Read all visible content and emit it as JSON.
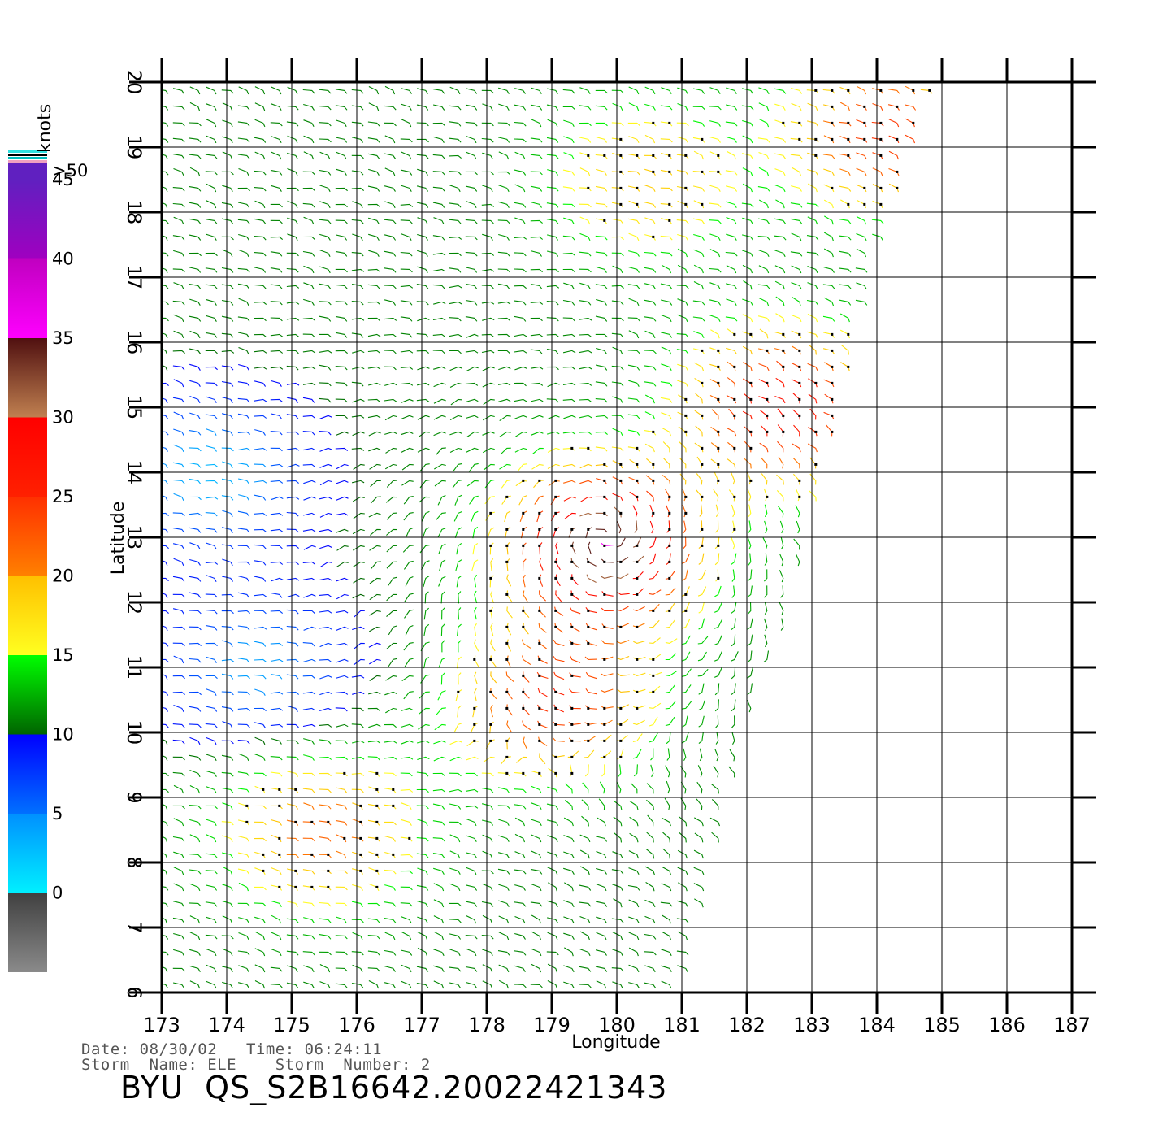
{
  "legend": {
    "units_label": "knots",
    "bins": [
      {
        "label": "0",
        "from": 0,
        "to": 5,
        "colors": [
          "#8a8a8a",
          "#404040"
        ]
      },
      {
        "label": "5",
        "from": 5,
        "to": 10,
        "colors": [
          "#00f0ff",
          "#0090ff"
        ]
      },
      {
        "label": "10",
        "from": 10,
        "to": 15,
        "colors": [
          "#0070ff",
          "#0000ff"
        ]
      },
      {
        "label": "15",
        "from": 15,
        "to": 20,
        "colors": [
          "#006400",
          "#00ff00"
        ]
      },
      {
        "label": "20",
        "from": 20,
        "to": 25,
        "colors": [
          "#ffff20",
          "#ffc000"
        ]
      },
      {
        "label": "25",
        "from": 25,
        "to": 30,
        "colors": [
          "#ff8000",
          "#ff3000"
        ]
      },
      {
        "label": "30",
        "from": 30,
        "to": 35,
        "colors": [
          "#ff2000",
          "#ff0000"
        ]
      },
      {
        "label": "35",
        "from": 35,
        "to": 40,
        "colors": [
          "#c08050",
          "#501010"
        ]
      },
      {
        "label": "40",
        "from": 40,
        "to": 45,
        "colors": [
          "#ff00ff",
          "#c000c0"
        ]
      },
      {
        "label": "45",
        "from": 45,
        "to": 50,
        "colors": [
          "#a000c0",
          "#6020c0"
        ]
      },
      {
        "label": ">50",
        "from": 50,
        "to": 55,
        "colors": [
          "#6020c0",
          "#6020c0"
        ]
      }
    ]
  },
  "chart_data": {
    "type": "scatter",
    "title": "BYU  QS_S2B16642.20022421343",
    "xlabel": "Longitude",
    "ylabel": "Latitude",
    "xlim": [
      173,
      187
    ],
    "ylim": [
      6,
      20
    ],
    "x_ticks": [
      "173",
      "174",
      "175",
      "176",
      "177",
      "178",
      "179",
      "180",
      "181",
      "182",
      "183",
      "184",
      "185",
      "186",
      "187"
    ],
    "y_ticks": [
      "6",
      "7",
      "8",
      "9",
      "10",
      "11",
      "12",
      "13",
      "14",
      "15",
      "16",
      "17",
      "18",
      "19",
      "20"
    ],
    "grid": true,
    "swath_edge": [
      [
        181.0,
        6.0
      ],
      [
        182.0,
        10.0
      ],
      [
        182.7,
        12.0
      ],
      [
        183.2,
        14.0
      ],
      [
        183.9,
        17.0
      ],
      [
        184.9,
        20.0
      ]
    ],
    "storm_center": {
      "lon": 179.8,
      "lat": 13.0
    },
    "wind_regions": [
      {
        "name": "storm core",
        "lon": 179.8,
        "lat": 12.9,
        "speed_knots": 40
      },
      {
        "name": "south band",
        "lon": 179.0,
        "lat": 10.5,
        "speed_knots": 30
      },
      {
        "name": "east band",
        "lon": 182.6,
        "lat": 15.0,
        "speed_knots": 33
      },
      {
        "name": "northeast band",
        "lon": 184.2,
        "lat": 19.2,
        "speed_knots": 30
      },
      {
        "name": "southwest band",
        "lon": 175.5,
        "lat": 8.5,
        "speed_knots": 27
      },
      {
        "name": "north field",
        "lon": 180.5,
        "lat": 18.5,
        "speed_knots": 24
      },
      {
        "name": "west calm",
        "lon": 173.8,
        "lat": 14.0,
        "speed_knots": 8
      },
      {
        "name": "southwest calm",
        "lon": 174.5,
        "lat": 11.0,
        "speed_knots": 9
      }
    ],
    "background_speed_knots": 16
  },
  "footer": {
    "date_line": "Date: 08/30/02   Time: 06:24:11",
    "storm_line": "Storm  Name: ELE    Storm  Number: 2",
    "title": "BYU  QS_S2B16642.20022421343"
  }
}
